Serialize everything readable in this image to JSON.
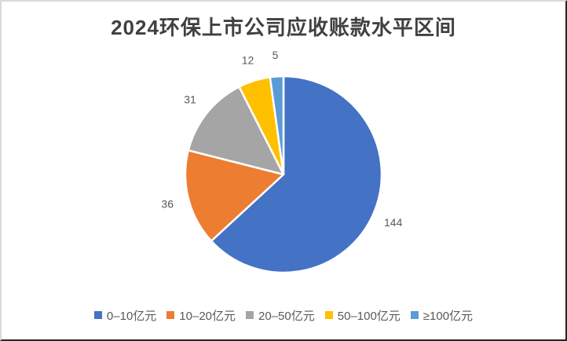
{
  "chart_data": {
    "type": "pie",
    "title": "2024环保上市公司应收账款水平区间",
    "categories": [
      "0–10亿元",
      "10–20亿元",
      "20–50亿元",
      "50–100亿元",
      "≥100亿元"
    ],
    "values": [
      144,
      36,
      31,
      12,
      5
    ],
    "data_labels": [
      "144",
      "36",
      "31",
      "12",
      "5"
    ],
    "colors": [
      "#4472C4",
      "#ED7D31",
      "#A5A5A5",
      "#FFC000",
      "#5B9BD5"
    ],
    "total": 228,
    "start_angle_deg": 0,
    "direction": "clockwise",
    "legend_position": "bottom",
    "slice_border_color": "#FFFFFF",
    "title_color": "#404040",
    "label_color": "#595959"
  }
}
